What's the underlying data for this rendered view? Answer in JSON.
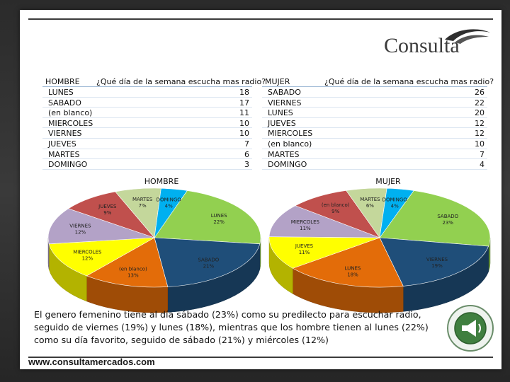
{
  "brand": {
    "name": "Consulta",
    "website": "www.consultamercados.com"
  },
  "hombre": {
    "gender_label": "HOMBRE",
    "question": "¿Qué día de la semana escucha mas radio?",
    "rows": [
      {
        "label": "LUNES",
        "value": "18"
      },
      {
        "label": "SABADO",
        "value": "17"
      },
      {
        "label": "(en blanco)",
        "value": "11"
      },
      {
        "label": "MIERCOLES",
        "value": "10"
      },
      {
        "label": "VIERNES",
        "value": "10"
      },
      {
        "label": "JUEVES",
        "value": "7"
      },
      {
        "label": "MARTES",
        "value": "6"
      },
      {
        "label": "DOMINGO",
        "value": "3"
      }
    ]
  },
  "mujer": {
    "gender_label": "MUJER",
    "question": "¿Qué día de la semana escucha mas radio?",
    "rows": [
      {
        "label": "SABADO",
        "value": "26"
      },
      {
        "label": "VIERNES",
        "value": "22"
      },
      {
        "label": "LUNES",
        "value": "20"
      },
      {
        "label": "JUEVES",
        "value": "12"
      },
      {
        "label": "MIERCOLES",
        "value": "12"
      },
      {
        "label": "(en blanco)",
        "value": "10"
      },
      {
        "label": "MARTES",
        "value": "7"
      },
      {
        "label": "DOMINGO",
        "value": "4"
      }
    ]
  },
  "chart_data": [
    {
      "type": "pie",
      "title": "HOMBRE",
      "slices": [
        {
          "label": "LUNES",
          "pct": "22%",
          "value": 22,
          "color": "#92d050"
        },
        {
          "label": "SABADO",
          "pct": "21%",
          "value": 21,
          "color": "#1f4e79"
        },
        {
          "label": "(en blanco)",
          "pct": "13%",
          "value": 13,
          "color": "#e36c09"
        },
        {
          "label": "MIERCOLES",
          "pct": "12%",
          "value": 12,
          "color": "#ffff00"
        },
        {
          "label": "VIERNES",
          "pct": "12%",
          "value": 12,
          "color": "#b3a2c7"
        },
        {
          "label": "JUEVES",
          "pct": "9%",
          "value": 9,
          "color": "#c0504d"
        },
        {
          "label": "MARTES",
          "pct": "7%",
          "value": 7,
          "color": "#c4d79b"
        },
        {
          "label": "DOMINGO",
          "pct": "4%",
          "value": 4,
          "color": "#00b0f0"
        }
      ]
    },
    {
      "type": "pie",
      "title": "MUJER",
      "slices": [
        {
          "label": "SABADO",
          "pct": "23%",
          "value": 23,
          "color": "#92d050"
        },
        {
          "label": "VIERNES",
          "pct": "19%",
          "value": 19,
          "color": "#1f4e79"
        },
        {
          "label": "LUNES",
          "pct": "18%",
          "value": 18,
          "color": "#e36c09"
        },
        {
          "label": "JUEVES",
          "pct": "11%",
          "value": 11,
          "color": "#ffff00"
        },
        {
          "label": "MIERCOLES",
          "pct": "11%",
          "value": 11,
          "color": "#b3a2c7"
        },
        {
          "label": "(en blanco)",
          "pct": "9%",
          "value": 9,
          "color": "#c0504d"
        },
        {
          "label": "MARTES",
          "pct": "6%",
          "value": 6,
          "color": "#c4d79b"
        },
        {
          "label": "DOMINGO",
          "pct": "4%",
          "value": 4,
          "color": "#00b0f0"
        }
      ]
    }
  ],
  "summary": "El genero femenino tiene al día sábado (23%) como su predilecto para escuchar radio, seguido de viernes (19%) y lunes (18%), mientras que los hombre tienen al lunes (22%) como su día favorito, seguido de sábado (21%) y miércoles (12%)"
}
